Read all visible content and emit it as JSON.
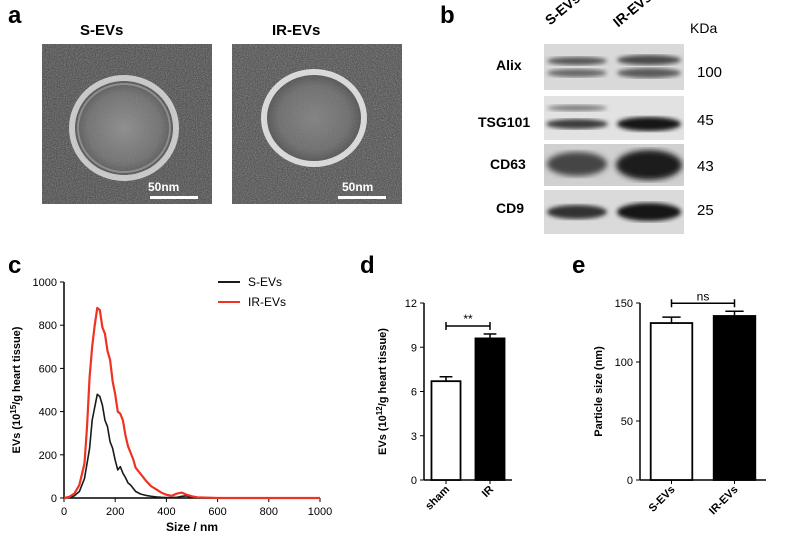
{
  "panels": {
    "a": {
      "letter": "a",
      "images": [
        {
          "title": "S-EVs",
          "scale": "50nm"
        },
        {
          "title": "IR-EVs",
          "scale": "50nm"
        }
      ]
    },
    "b": {
      "letter": "b",
      "lanes": [
        "S-EVs",
        "IR-EVs"
      ],
      "unit": "KDa",
      "bands": [
        {
          "protein": "Alix",
          "kda": "100"
        },
        {
          "protein": "TSG101",
          "kda": "45"
        },
        {
          "protein": "CD63",
          "kda": "43"
        },
        {
          "protein": "CD9",
          "kda": "25"
        }
      ]
    },
    "c": {
      "letter": "c"
    },
    "d": {
      "letter": "d"
    },
    "e": {
      "letter": "e"
    }
  },
  "colors": {
    "s_evs": "#1a1a1a",
    "ir_evs": "#ee3322"
  },
  "chart_data": [
    {
      "type": "line",
      "panel": "c",
      "xlabel": "Size / nm",
      "ylabel": "EVs (10^15/g heart tissue)",
      "xlim": [
        0,
        1000
      ],
      "ylim": [
        0,
        1000
      ],
      "xticks": [
        "0",
        "200",
        "400",
        "600",
        "800",
        "1000"
      ],
      "yticks": [
        "0",
        "200",
        "400",
        "600",
        "800",
        "1000"
      ],
      "legend": "top-right",
      "series": [
        {
          "name": "S-EVs",
          "x": [
            0,
            20,
            40,
            60,
            80,
            100,
            110,
            120,
            130,
            140,
            150,
            160,
            170,
            180,
            190,
            200,
            210,
            220,
            230,
            240,
            250,
            260,
            270,
            280,
            300,
            320,
            340,
            360,
            380,
            400,
            420,
            440,
            460,
            480,
            490,
            500,
            520,
            1000
          ],
          "y": [
            0,
            2,
            10,
            30,
            90,
            230,
            360,
            420,
            480,
            470,
            430,
            360,
            330,
            260,
            230,
            175,
            130,
            145,
            115,
            95,
            70,
            60,
            45,
            30,
            18,
            12,
            8,
            5,
            3,
            2,
            2,
            3,
            8,
            10,
            5,
            2,
            0,
            0
          ]
        },
        {
          "name": "IR-EVs",
          "x": [
            0,
            20,
            40,
            60,
            80,
            90,
            100,
            110,
            120,
            130,
            140,
            150,
            160,
            170,
            180,
            190,
            200,
            210,
            220,
            230,
            240,
            250,
            260,
            270,
            280,
            300,
            320,
            340,
            360,
            380,
            400,
            420,
            440,
            460,
            480,
            500,
            520,
            550,
            600,
            700,
            800,
            900,
            1000
          ],
          "y": [
            0,
            5,
            20,
            60,
            160,
            330,
            560,
            700,
            800,
            880,
            870,
            790,
            760,
            680,
            640,
            540,
            480,
            400,
            390,
            360,
            290,
            240,
            210,
            180,
            140,
            110,
            80,
            55,
            40,
            25,
            15,
            10,
            20,
            25,
            15,
            8,
            3,
            2,
            0,
            0,
            0,
            0,
            0
          ]
        }
      ]
    },
    {
      "type": "bar",
      "panel": "d",
      "ylabel": "EVs (10^12/g heart tissue)",
      "categories": [
        "sham",
        "IR"
      ],
      "values": [
        6.7,
        9.6
      ],
      "errors": [
        0.3,
        0.3
      ],
      "ylim": [
        0,
        12
      ],
      "yticks": [
        "0",
        "3",
        "6",
        "9",
        "12"
      ],
      "significance": "**"
    },
    {
      "type": "bar",
      "panel": "e",
      "ylabel": "Particle size (nm)",
      "categories": [
        "S-EVs",
        "IR-EVs"
      ],
      "values": [
        133,
        139
      ],
      "errors": [
        5,
        4
      ],
      "ylim": [
        0,
        150
      ],
      "yticks": [
        "0",
        "50",
        "100",
        "150"
      ],
      "significance": "ns"
    }
  ]
}
